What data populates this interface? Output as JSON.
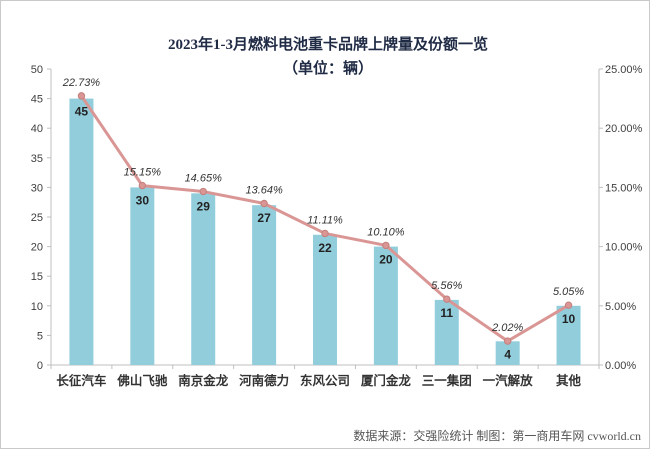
{
  "chart_data": {
    "type": "bar",
    "title": "2023年1-3月燃料电池重卡品牌上牌量及份额一览",
    "subtitle": "（单位：辆）",
    "categories": [
      "长征汽车",
      "佛山飞驰",
      "南京金龙",
      "河南德力",
      "东风公司",
      "厦门金龙",
      "三一集团",
      "一汽解放",
      "其他"
    ],
    "series": [
      {
        "name": "上牌量",
        "type": "bar",
        "axis": "left",
        "values": [
          45,
          30,
          29,
          27,
          22,
          20,
          11,
          4,
          10
        ],
        "color": "#92cddc"
      },
      {
        "name": "份额",
        "type": "line",
        "axis": "right",
        "values": [
          22.73,
          15.15,
          14.65,
          13.64,
          11.11,
          10.1,
          5.56,
          2.02,
          5.05
        ],
        "color": "#d99694"
      }
    ],
    "value_labels": [
      "45",
      "30",
      "29",
      "27",
      "22",
      "20",
      "11",
      "4",
      "10"
    ],
    "share_labels": [
      "22.73%",
      "15.15%",
      "14.65%",
      "13.64%",
      "11.11%",
      "10.10%",
      "5.56%",
      "2.02%",
      "5.05%"
    ],
    "y_left": {
      "min": 0,
      "max": 50,
      "ticks": [
        "0",
        "5",
        "10",
        "15",
        "20",
        "25",
        "30",
        "35",
        "40",
        "45",
        "50"
      ]
    },
    "y_right": {
      "min": 0,
      "max": 25,
      "ticks": [
        "0.00%",
        "5.00%",
        "10.00%",
        "15.00%",
        "20.00%",
        "25.00%"
      ]
    },
    "gridlines": false,
    "source": "数据来源：交强险统计  制图：第一商用车网 cvworld.cn"
  }
}
